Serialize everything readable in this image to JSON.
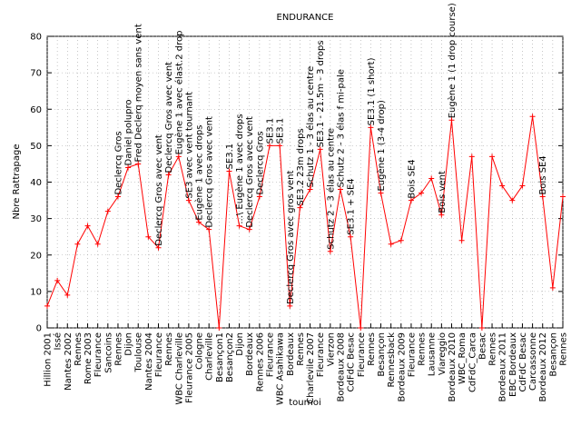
{
  "chart_data": {
    "type": "line",
    "title": "ENDURANCE",
    "xlabel": "tournoi",
    "ylabel": "Nbre Rattrapage",
    "categories": [
      "Hillion 2001",
      "Issé",
      "Nantes 2002",
      "Rennes",
      "Rome 2003",
      "Fleurance",
      "Sancoins",
      "Rennes",
      "Dijon",
      "Toulouse",
      "Nantes 2004",
      "Fleurance",
      "Rennes",
      "WBC Charleville",
      "Fleurance 2005",
      "Cologne",
      "Charleville",
      "Besançon1",
      "Besançon2",
      "Dijon",
      "Bordeaux",
      "Rennes 2006",
      "Fleurance",
      "WBC Asahikawa",
      "Bordeaux",
      "Rennes",
      "Charlevile 2007",
      "Fleurance",
      "Vierzon",
      "Bordeaux 2008",
      "CdFdC Besac",
      "Fleurance",
      "Rennes",
      "Besançon",
      "Rennesback",
      "Bordeaux 2009",
      "Fleurance",
      "Rennes",
      "Lausanne",
      "Viareggio",
      "Bordeaux 2010",
      "WBC_Roma",
      "CdFdC_Carca",
      "Besac",
      "Rennes",
      "Bordeaux 2011",
      "EBC Bordeaux",
      "CdFdC Besac",
      "Carcassonne",
      "Bordeaux 2012",
      "Besançon",
      "Rennes"
    ],
    "values": [
      6,
      13,
      9,
      23,
      28,
      23,
      32,
      36,
      44,
      45,
      25,
      22,
      42,
      47,
      35,
      29,
      27,
      0,
      43,
      28,
      27,
      36,
      50,
      50,
      6,
      33,
      38,
      49,
      21,
      38,
      25,
      0,
      55,
      37,
      23,
      24,
      35,
      37,
      41,
      31,
      57,
      24,
      47,
      0,
      47,
      39,
      35,
      39,
      58,
      36,
      11,
      36
    ],
    "color": "#ff0000",
    "ylim": [
      0,
      80
    ],
    "yticks": [
      0,
      10,
      20,
      30,
      40,
      50,
      60,
      70,
      80
    ],
    "grid": true,
    "annotations": [
      {
        "index": 7,
        "text": "Declercq Gros"
      },
      {
        "index": 8,
        "text": "Daniel polupro"
      },
      {
        "index": 9,
        "text": "Fred Declerq moyen sans vent"
      },
      {
        "index": 11,
        "text": "Declercq Gros avec vent"
      },
      {
        "index": 12,
        "text": "Declercq Gros avec vent"
      },
      {
        "index": 13,
        "text": "Eugène 1 avec élast.2 drop"
      },
      {
        "index": 14,
        "text": "SE3 avec vent tournant"
      },
      {
        "index": 15,
        "text": "Eugène 1 avec drops"
      },
      {
        "index": 16,
        "text": "Declercq Gros avec vent"
      },
      {
        "index": 18,
        "text": "SE3.1"
      },
      {
        "index": 19,
        "text": "...\\ Eugène 1 avec drops"
      },
      {
        "index": 20,
        "text": "Declercq Gros avec vent"
      },
      {
        "index": 21,
        "text": "Declercq Gros"
      },
      {
        "index": 22,
        "text": "SE3.1"
      },
      {
        "index": 23,
        "text": "SE3.1"
      },
      {
        "index": 24,
        "text": "Declercq Gros avec gros vent"
      },
      {
        "index": 25,
        "text": "SE3.2 23m drops"
      },
      {
        "index": 26,
        "text": "Schutz 1 - 3 élas au centre"
      },
      {
        "index": 27,
        "text": "SE3.1 - 21.5m - 3 drops"
      },
      {
        "index": 28,
        "text": "Schutz 2 - 3 élas au centre"
      },
      {
        "index": 29,
        "text": "Schutz 2 - 3 élas f mi-pale"
      },
      {
        "index": 30,
        "text": "SE3.1 + SE4"
      },
      {
        "index": 32,
        "text": "SE3.1 (1 short)"
      },
      {
        "index": 33,
        "text": "Eugène 1 (3-4 drop)"
      },
      {
        "index": 36,
        "text": "Bois SE4"
      },
      {
        "index": 39,
        "text": "Bois vent"
      },
      {
        "index": 40,
        "text": "Eugène 1 (1 drop course)"
      },
      {
        "index": 49,
        "text": "Bois SE4"
      }
    ]
  }
}
